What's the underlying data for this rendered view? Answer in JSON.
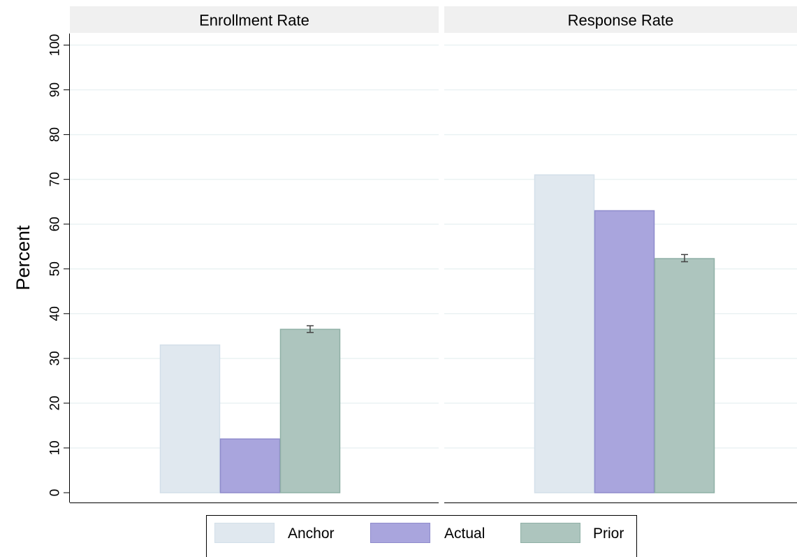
{
  "chart_data": {
    "type": "bar",
    "ylabel": "Percent",
    "ylim": [
      0,
      100
    ],
    "yticks": [
      0,
      10,
      20,
      30,
      40,
      50,
      60,
      70,
      80,
      90,
      100
    ],
    "grid": true,
    "legend_position": "bottom",
    "series": [
      {
        "name": "Anchor",
        "color": "#e0e8ef",
        "border": "#d3dfe9"
      },
      {
        "name": "Actual",
        "color": "#a9a5dd",
        "border": "#8f8ccc"
      },
      {
        "name": "Prior",
        "color": "#adc5be",
        "border": "#8fb0a6"
      }
    ],
    "panels": [
      {
        "title": "Enrollment Rate",
        "values": [
          33,
          12,
          36.5
        ],
        "error": {
          "series": "Prior",
          "low": 35.8,
          "high": 37.3
        }
      },
      {
        "title": "Response Rate",
        "values": [
          71,
          63,
          52.3
        ],
        "error": {
          "series": "Prior",
          "low": 51.6,
          "high": 53.2
        }
      }
    ]
  }
}
